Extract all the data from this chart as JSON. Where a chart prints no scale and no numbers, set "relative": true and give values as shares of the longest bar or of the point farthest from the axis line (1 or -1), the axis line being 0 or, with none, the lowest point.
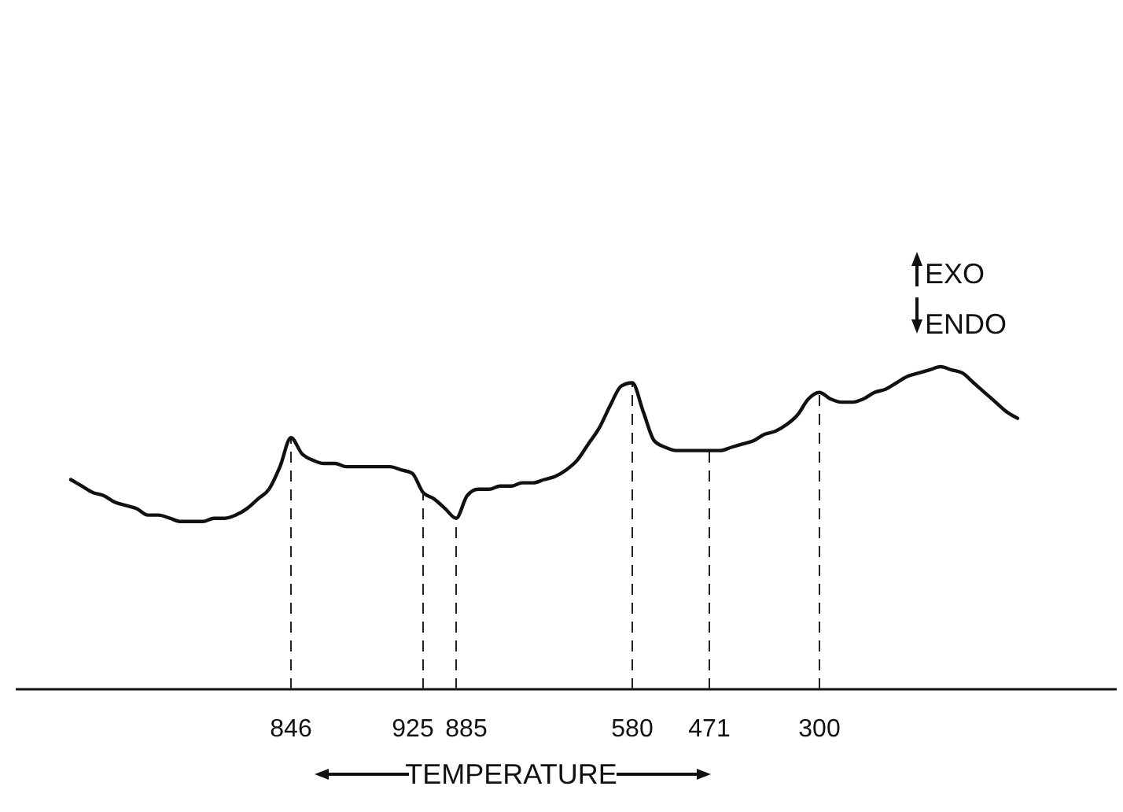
{
  "chart_data": {
    "type": "line",
    "relative": true,
    "grid": "x",
    "xlabel": "TEMPERATURE",
    "annotations": [
      "EXO",
      "ENDO"
    ],
    "color": "#111111",
    "categories": [
      null,
      null,
      null,
      null,
      null,
      null,
      null,
      null,
      null,
      null,
      null,
      null,
      null,
      null,
      null,
      null,
      null,
      null,
      null,
      null,
      null,
      null,
      null,
      null,
      null,
      "846",
      null,
      null,
      null,
      null,
      null,
      null,
      null,
      null,
      null,
      null,
      null,
      "925",
      null,
      null,
      "885",
      null,
      null,
      null,
      null,
      null,
      null,
      null,
      null,
      null,
      null,
      null,
      null,
      null,
      null,
      null,
      "580",
      null,
      null,
      null,
      null,
      null,
      null,
      "471",
      null,
      null,
      null,
      null,
      null,
      null,
      null,
      null,
      null,
      "300",
      null,
      null,
      null,
      null,
      null,
      null,
      null,
      null,
      null,
      null,
      null,
      null,
      null,
      null,
      null,
      null,
      null,
      null,
      null,
      null,
      null,
      null,
      null,
      null,
      null,
      null,
      null
    ],
    "values": [
      null,
      null,
      null,
      null,
      null,
      0.65,
      0.63,
      0.61,
      0.6,
      0.58,
      0.57,
      0.56,
      0.54,
      0.54,
      0.53,
      0.52,
      0.52,
      0.52,
      0.53,
      0.53,
      0.54,
      0.56,
      0.59,
      0.62,
      0.69,
      0.78,
      0.73,
      0.71,
      0.7,
      0.7,
      0.69,
      0.69,
      0.69,
      0.69,
      0.69,
      0.68,
      0.67,
      0.61,
      0.59,
      0.56,
      0.53,
      0.6,
      0.62,
      0.62,
      0.63,
      0.63,
      0.64,
      0.64,
      0.65,
      0.66,
      0.68,
      0.71,
      0.76,
      0.81,
      0.88,
      0.94,
      0.95,
      0.86,
      0.77,
      0.75,
      0.74,
      0.74,
      0.74,
      0.74,
      0.74,
      0.75,
      0.76,
      0.77,
      0.79,
      0.8,
      0.82,
      0.85,
      0.9,
      0.92,
      0.9,
      0.89,
      0.89,
      0.9,
      0.92,
      0.93,
      0.95,
      0.97,
      0.98,
      0.99,
      1.0,
      0.99,
      0.98,
      0.95,
      0.92,
      0.89,
      0.86,
      0.84,
      null,
      null,
      null,
      null,
      null,
      null,
      null,
      null,
      null
    ]
  }
}
